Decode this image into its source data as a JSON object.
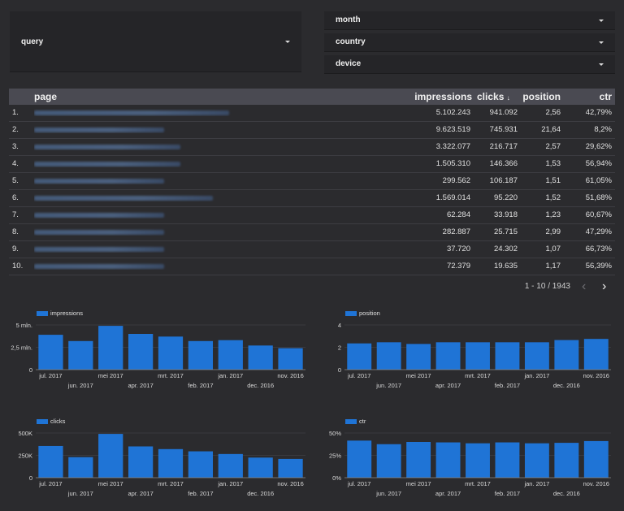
{
  "filters": {
    "query": {
      "label": "query"
    },
    "month": {
      "label": "month"
    },
    "country": {
      "label": "country"
    },
    "device": {
      "label": "device"
    }
  },
  "table": {
    "columns": {
      "page": "page",
      "impressions": "impressions",
      "clicks": "clicks",
      "position": "position",
      "ctr": "ctr"
    },
    "sort_indicator": "↓",
    "rows": [
      {
        "n": "1.",
        "page": "http://www.npo...nl/",
        "impressions": "5.102.243",
        "clicks": "941.092",
        "position": "2,56",
        "ctr": "42,79%"
      },
      {
        "n": "2.",
        "page": "(unknown)",
        "impressions": "9.623.519",
        "clicks": "745.931",
        "position": "21,64",
        "ctr": "8,2%"
      },
      {
        "n": "3.",
        "page": "http://www.npo...nl/live",
        "impressions": "3.322.077",
        "clicks": "216.717",
        "position": "2,57",
        "ctr": "29,62%"
      },
      {
        "n": "4.",
        "page": "http://www.npo...nl/frequenties",
        "impressions": "1.505.310",
        "clicks": "146.366",
        "position": "1,53",
        "ctr": "56,94%"
      },
      {
        "n": "5.",
        "page": "http://www.npo...nl/...",
        "impressions": "299.562",
        "clicks": "106.187",
        "position": "1,51",
        "ctr": "61,05%"
      },
      {
        "n": "6.",
        "page": "http://www.npo...nl/gemist",
        "impressions": "1.569.014",
        "clicks": "95.220",
        "position": "1,52",
        "ctr": "51,68%"
      },
      {
        "n": "7.",
        "page": "http://www.npo...nl/...",
        "impressions": "62.284",
        "clicks": "33.918",
        "position": "1,23",
        "ctr": "60,67%"
      },
      {
        "n": "8.",
        "page": "http://www.npo...nl/...",
        "impressions": "282.887",
        "clicks": "25.715",
        "position": "2,99",
        "ctr": "47,29%"
      },
      {
        "n": "9.",
        "page": "http://www.npo...nl/...",
        "impressions": "37.720",
        "clicks": "24.302",
        "position": "1,07",
        "ctr": "66,73%"
      },
      {
        "n": "10.",
        "page": "http://www.npo...nl/...",
        "impressions": "72.379",
        "clicks": "19.635",
        "position": "1,17",
        "ctr": "56,39%"
      }
    ],
    "pagination": "1 - 10 / 1943",
    "prev_glyph": "‹",
    "next_glyph": "›"
  },
  "colors": {
    "bar": "#1f74d6",
    "axis": "#8a8a8a",
    "grid": "#4a4a4f"
  },
  "chart_data": [
    {
      "type": "bar",
      "legend": "impressions",
      "categories": [
        "jul. 2017",
        "jun. 2017",
        "mei 2017",
        "apr. 2017",
        "mrt. 2017",
        "feb. 2017",
        "jan. 2017",
        "dec. 2016",
        "nov. 2016"
      ],
      "values": [
        3.9,
        3.2,
        4.9,
        4.0,
        3.7,
        3.2,
        3.3,
        2.7,
        2.4
      ],
      "ylim": [
        0,
        5
      ],
      "yticks": [
        {
          "v": 0,
          "label": "0"
        },
        {
          "v": 2.5,
          "label": "2,5 mln."
        },
        {
          "v": 5,
          "label": "5 mln."
        }
      ],
      "unit": "mln."
    },
    {
      "type": "bar",
      "legend": "position",
      "categories": [
        "jul. 2017",
        "jun. 2017",
        "mei 2017",
        "apr. 2017",
        "mrt. 2017",
        "feb. 2017",
        "jan. 2017",
        "dec. 2016",
        "nov. 2016"
      ],
      "values": [
        2.35,
        2.45,
        2.3,
        2.45,
        2.45,
        2.45,
        2.45,
        2.65,
        2.75
      ],
      "ylim": [
        0,
        4
      ],
      "yticks": [
        {
          "v": 0,
          "label": "0"
        },
        {
          "v": 2,
          "label": "2"
        },
        {
          "v": 4,
          "label": "4"
        }
      ]
    },
    {
      "type": "bar",
      "legend": "clicks",
      "categories": [
        "jul. 2017",
        "jun. 2017",
        "mei 2017",
        "apr. 2017",
        "mrt. 2017",
        "feb. 2017",
        "jan. 2017",
        "dec. 2016",
        "nov. 2016"
      ],
      "values": [
        355,
        230,
        490,
        350,
        320,
        295,
        265,
        225,
        210
      ],
      "ylim": [
        0,
        500
      ],
      "yticks": [
        {
          "v": 0,
          "label": "0"
        },
        {
          "v": 250,
          "label": "250K"
        },
        {
          "v": 500,
          "label": "500K"
        }
      ],
      "unit": "K"
    },
    {
      "type": "bar",
      "legend": "ctr",
      "categories": [
        "jul. 2017",
        "jun. 2017",
        "mei 2017",
        "apr. 2017",
        "mrt. 2017",
        "feb. 2017",
        "jan. 2017",
        "dec. 2016",
        "nov. 2016"
      ],
      "values": [
        41.5,
        37.5,
        40,
        39.5,
        38.5,
        39.5,
        38.5,
        39,
        41
      ],
      "ylim": [
        0,
        50
      ],
      "yticks": [
        {
          "v": 0,
          "label": "0%"
        },
        {
          "v": 25,
          "label": "25%"
        },
        {
          "v": 50,
          "label": "50%"
        }
      ],
      "unit": "%"
    }
  ]
}
